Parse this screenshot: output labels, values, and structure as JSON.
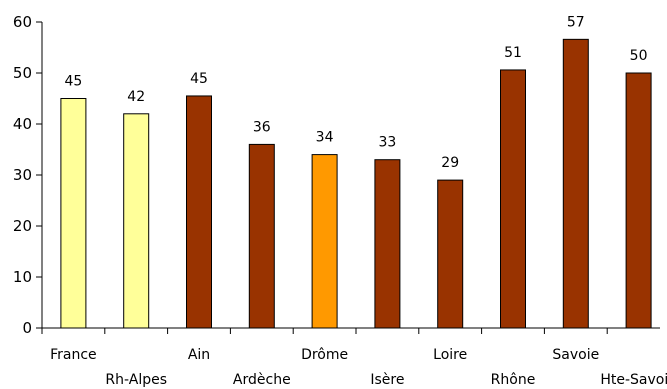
{
  "chart_data": {
    "type": "bar",
    "categories": [
      "France",
      "Rh-Alpes",
      "Ain",
      "Ardèche",
      "Drôme",
      "Isère",
      "Loire",
      "Rhône",
      "Savoie",
      "Hte-Savoie"
    ],
    "values": [
      45,
      42,
      45.5,
      36,
      34,
      33,
      29,
      50.6,
      56.6,
      50
    ],
    "data_labels": [
      "45",
      "42",
      "45",
      "36",
      "34",
      "33",
      "29",
      "51",
      "57",
      "50"
    ],
    "bar_colors": [
      "#ffff99",
      "#ffff99",
      "#993300",
      "#993300",
      "#ff9900",
      "#993300",
      "#993300",
      "#993300",
      "#993300",
      "#993300"
    ],
    "ylim": [
      0,
      60
    ],
    "yticks": [
      0,
      10,
      20,
      30,
      40,
      50,
      60
    ],
    "grid": false,
    "legend": "none",
    "title": "",
    "xlabel": "",
    "ylabel": ""
  }
}
